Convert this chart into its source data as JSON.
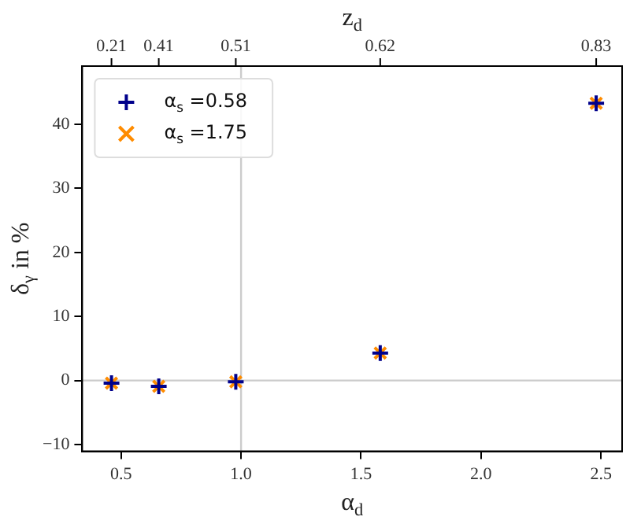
{
  "chart_data": {
    "type": "scatter",
    "xlabel": "α$_{d}$",
    "ylabel": "δ$_{γ}$ in %",
    "x2label": "z$_{d}$",
    "x": [
      0.46,
      0.657,
      0.978,
      1.58,
      2.48
    ],
    "series": [
      {
        "name": "α$_{s}$ =0.58",
        "color": "#00008b",
        "marker": "plus",
        "values": [
          -0.4,
          -0.9,
          -0.2,
          4.3,
          43.3
        ]
      },
      {
        "name": "α$_{s}$ =1.75",
        "color": "#ff8c00",
        "marker": "cross",
        "values": [
          -0.4,
          -0.9,
          -0.2,
          4.3,
          43.3
        ]
      }
    ],
    "xlim": [
      0.338,
      2.588
    ],
    "xticks": [
      0.5,
      {
        "value": 1,
        "label": "1.0"
      },
      1.5,
      {
        "value": 2,
        "label": "2.0"
      },
      2.5
    ],
    "annotations": [
      "0.21",
      "0.41",
      "0.51",
      "0.62",
      "0.83"
    ],
    "ylim": [
      -11.05,
      49.1
    ],
    "yticks": [
      {
        "value": -10,
        "label": "−10"
      },
      0,
      10,
      20,
      30,
      40
    ],
    "ref_lines": [
      {
        "axis": "x",
        "value": 1.0,
        "color": "#cccccc"
      },
      {
        "axis": "y",
        "value": 0,
        "color": "#cccccc"
      }
    ],
    "grid": false,
    "legend": "top left"
  }
}
